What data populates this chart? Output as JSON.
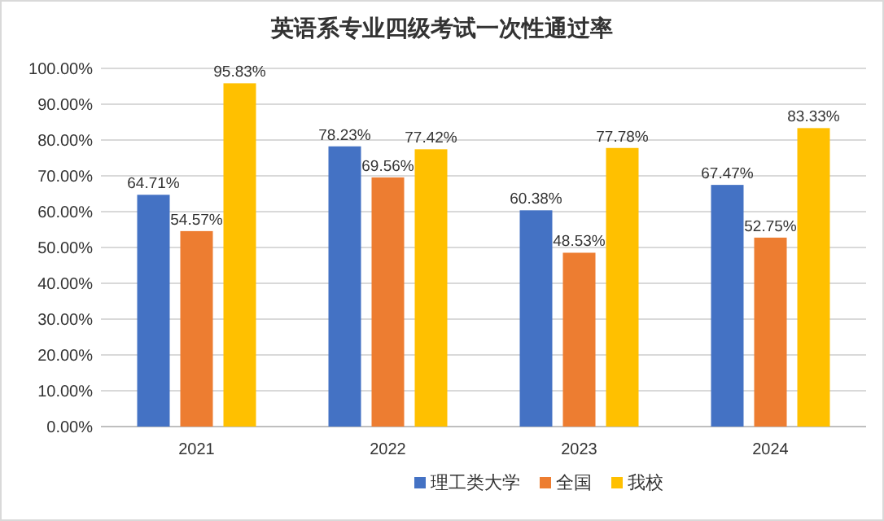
{
  "chart_data": {
    "type": "bar",
    "title": "英语系专业四级考试一次性通过率",
    "categories": [
      "2021",
      "2022",
      "2023",
      "2024"
    ],
    "series": [
      {
        "name": "理工类大学",
        "color": "#4472c4",
        "values": [
          64.71,
          78.23,
          60.38,
          67.47
        ],
        "value_labels": [
          "64.71%",
          "78.23%",
          "60.38%",
          "67.47%"
        ]
      },
      {
        "name": "全国",
        "color": "#ed7d31",
        "values": [
          54.57,
          69.56,
          48.53,
          52.75
        ],
        "value_labels": [
          "54.57%",
          "69.56%",
          "48.53%",
          "52.75%"
        ]
      },
      {
        "name": "我校",
        "color": "#ffc000",
        "values": [
          95.83,
          77.42,
          77.78,
          83.33
        ],
        "value_labels": [
          "95.83%",
          "77.42%",
          "77.78%",
          "83.33%"
        ]
      }
    ],
    "ylim": [
      0,
      100
    ],
    "yticks": [
      {
        "value": 0,
        "label": "0.00%"
      },
      {
        "value": 10,
        "label": "10.00%"
      },
      {
        "value": 20,
        "label": "20.00%"
      },
      {
        "value": 30,
        "label": "30.00%"
      },
      {
        "value": 40,
        "label": "40.00%"
      },
      {
        "value": 50,
        "label": "50.00%"
      },
      {
        "value": 60,
        "label": "60.00%"
      },
      {
        "value": 70,
        "label": "70.00%"
      },
      {
        "value": 80,
        "label": "80.00%"
      },
      {
        "value": 90,
        "label": "90.00%"
      },
      {
        "value": 100,
        "label": "100.00%"
      }
    ],
    "grid": "y",
    "legend": "bottom"
  }
}
